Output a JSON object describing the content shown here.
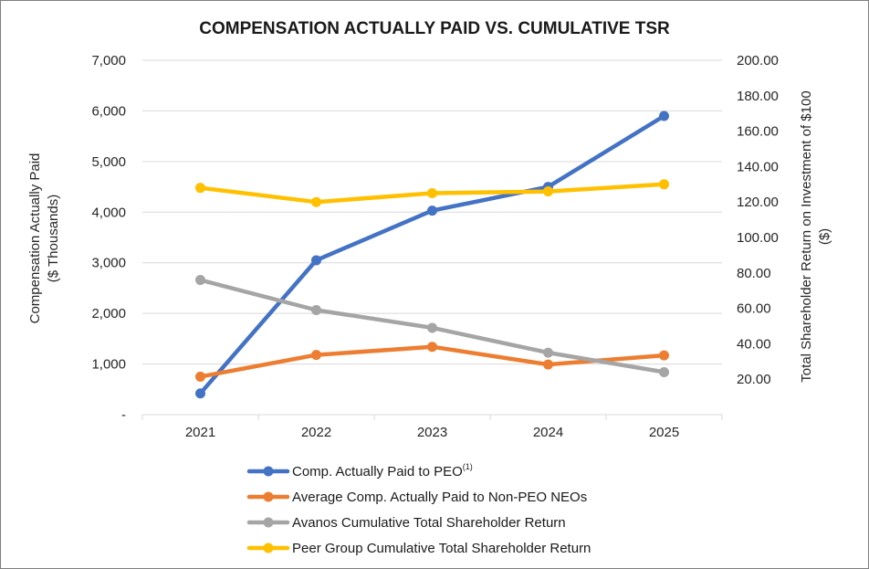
{
  "chart_data": {
    "type": "line",
    "title": "COMPENSATION ACTUALLY PAID VS. CUMULATIVE TSR",
    "categories": [
      "2021",
      "2022",
      "2023",
      "2024",
      "2025"
    ],
    "ylabel_left_line1": "Compensation Actually Paid",
    "ylabel_left_line2": "($ Thousands)",
    "ylabel_right_line1": "Total Shareholder Return on Investment of $100",
    "ylabel_right_line2": "($)",
    "ylim_left": [
      0,
      7000
    ],
    "ylim_right": [
      0,
      200
    ],
    "left_ticks": [
      "-",
      "1,000",
      "2,000",
      "3,000",
      "4,000",
      "5,000",
      "6,000",
      "7,000"
    ],
    "right_ticks": [
      "",
      "20.00",
      "40.00",
      "60.00",
      "80.00",
      "100.00",
      "120.00",
      "140.00",
      "160.00",
      "180.00",
      "200.00"
    ],
    "legend_position": "bottom",
    "series": [
      {
        "name": "Comp. Actually Paid to PEO",
        "name_sup": "(1)",
        "axis": "left",
        "color": "#4472c4",
        "values": [
          420,
          3050,
          4030,
          4500,
          5900
        ]
      },
      {
        "name": "Average Comp. Actually Paid to Non-PEO NEOs",
        "name_sup": "",
        "axis": "left",
        "color": "#ed7d31",
        "values": [
          750,
          1180,
          1340,
          990,
          1170
        ]
      },
      {
        "name": "Avanos Cumulative Total Shareholder Return",
        "name_sup": "",
        "axis": "right",
        "color": "#a5a5a5",
        "values": [
          76,
          59,
          49,
          35,
          24
        ]
      },
      {
        "name": "Peer Group Cumulative Total Shareholder Return",
        "name_sup": "",
        "axis": "right",
        "color": "#ffc000",
        "values": [
          128,
          120,
          125,
          126,
          130
        ]
      }
    ]
  }
}
